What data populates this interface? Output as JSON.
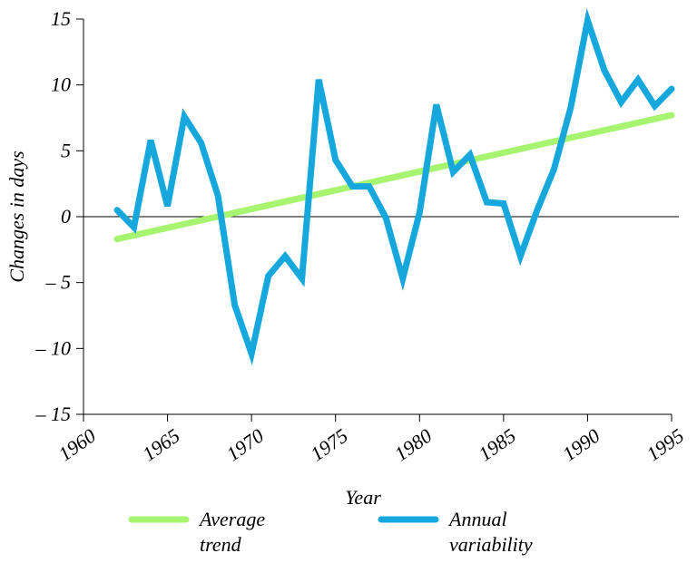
{
  "chart_data": {
    "type": "line",
    "x_label": "Year",
    "y_label": "Changes in days",
    "xlim": [
      1960,
      1995
    ],
    "xticks": [
      1960,
      1965,
      1970,
      1975,
      1980,
      1985,
      1990,
      1995
    ],
    "ylim": [
      -15,
      15
    ],
    "yticks": [
      {
        "value": -15,
        "label": "– 15"
      },
      {
        "value": -10,
        "label": "– 10"
      },
      {
        "value": -5,
        "label": "– 5"
      },
      0,
      5,
      10,
      15
    ],
    "zero_line": true,
    "series": [
      {
        "name": "Average trend",
        "color": "#a6f46f",
        "x": [
          1962,
          1995
        ],
        "values": [
          -1.7,
          7.7
        ]
      },
      {
        "name": "Annual variability",
        "color": "#16a8dc",
        "x": [
          1962,
          1963,
          1964,
          1965,
          1966,
          1967,
          1968,
          1969,
          1970,
          1971,
          1972,
          1973,
          1974,
          1975,
          1976,
          1977,
          1978,
          1979,
          1980,
          1981,
          1982,
          1983,
          1984,
          1985,
          1986,
          1987,
          1988,
          1989,
          1990,
          1991,
          1992,
          1993,
          1994,
          1995
        ],
        "values": [
          0.5,
          -0.8,
          5.8,
          0.8,
          7.6,
          5.6,
          1.6,
          -6.7,
          -10.4,
          -4.5,
          -3.0,
          -4.7,
          10.4,
          4.3,
          2.3,
          2.3,
          -0.1,
          -4.7,
          0.3,
          8.5,
          3.4,
          4.7,
          1.1,
          1.0,
          -3.0,
          0.5,
          3.6,
          8.3,
          14.9,
          11.1,
          8.7,
          10.4,
          8.4,
          9.7
        ]
      }
    ]
  }
}
